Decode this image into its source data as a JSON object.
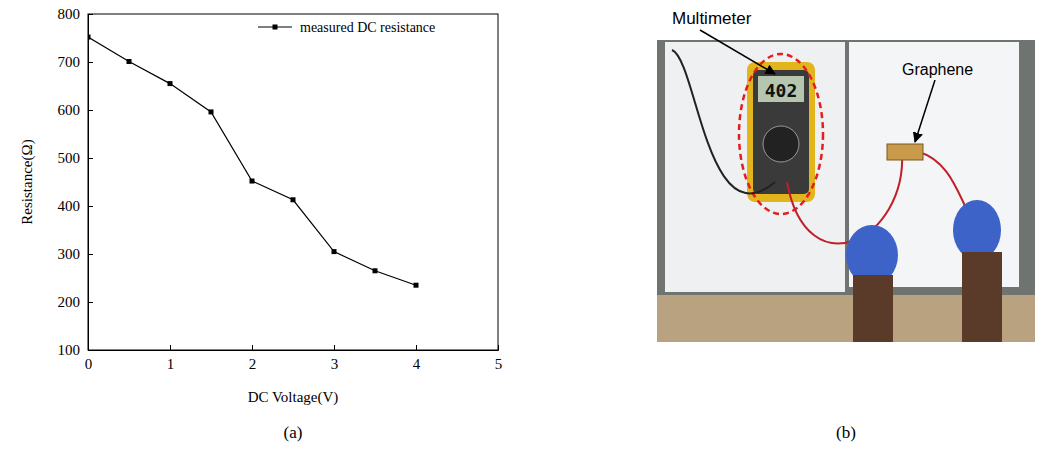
{
  "chart_data": {
    "type": "line",
    "x_label": "DC Voltage(V)",
    "y_label": "Resistance(Ω)",
    "x": [
      0,
      0.5,
      1,
      1.5,
      2,
      2.5,
      3,
      3.5,
      4
    ],
    "series": [
      {
        "name": "measured DC resistance",
        "color": "#000000",
        "marker": "square",
        "line_style": "solid",
        "values": [
          752,
          701,
          655,
          596,
          452,
          413,
          305,
          265,
          235
        ]
      }
    ],
    "xlim": [
      0,
      5
    ],
    "xticks": [
      0,
      1,
      2,
      3,
      4,
      5
    ],
    "ylim": [
      100,
      800
    ],
    "yticks": [
      100,
      200,
      300,
      400,
      500,
      600,
      700,
      800
    ],
    "legend": "upper right",
    "grid": false
  },
  "figure": {
    "panel_labels": [
      "(a)",
      "(b)"
    ],
    "photo": {
      "annotations": [
        "Multimeter",
        "Graphene"
      ],
      "display_reading": "402"
    }
  }
}
